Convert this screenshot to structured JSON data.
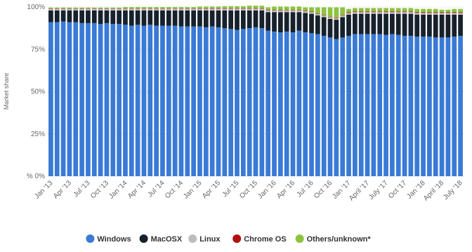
{
  "chart_data": {
    "type": "stacked_bar",
    "y_label": "Market share",
    "categories": [
      "Jan '13",
      null,
      null,
      "Apr '13",
      null,
      null,
      "Jul '13",
      null,
      null,
      "Oct '13",
      null,
      null,
      "Jan '14",
      null,
      null,
      "Apr '14",
      null,
      null,
      "Jul '14",
      null,
      null,
      "Oct '14",
      null,
      null,
      "Jan '15",
      null,
      null,
      "Apr '15",
      null,
      null,
      "Jul '15",
      null,
      null,
      "Oct '15",
      null,
      null,
      "Jan '16",
      null,
      null,
      "Apr '16",
      null,
      null,
      "Jul '16",
      null,
      null,
      "Oct '16",
      null,
      null,
      "Jan '17",
      null,
      null,
      "April '17",
      null,
      null,
      "July '17",
      null,
      null,
      "Oct '17",
      null,
      null,
      "Jan '18",
      null,
      null,
      "April '18",
      null,
      null,
      "July '18"
    ],
    "series": [
      {
        "name": "Windows",
        "color": "#3a7ad6",
        "values": [
          91,
          91,
          91.5,
          91,
          91,
          90.5,
          90.5,
          90.5,
          90,
          90.5,
          90,
          90,
          89.5,
          89,
          89.5,
          89,
          89.5,
          89,
          89,
          89,
          89,
          88.5,
          88.5,
          88.5,
          88.5,
          88,
          88.5,
          88,
          87.5,
          87,
          86.5,
          87,
          87.5,
          88,
          87.5,
          86,
          85.5,
          85,
          85.5,
          85,
          86,
          85,
          84.5,
          84,
          83,
          82,
          81,
          82,
          83,
          84,
          84,
          84,
          84,
          84,
          83.5,
          84,
          83.5,
          83,
          83,
          82.5,
          82.5,
          82.5,
          82,
          82,
          82,
          82.5,
          83
        ]
      },
      {
        "name": "MacOSX",
        "color": "#17212c",
        "values": [
          7,
          7,
          6.5,
          7,
          7,
          7.5,
          7.5,
          7.5,
          8,
          7.5,
          8,
          8,
          8.5,
          9,
          8.5,
          9,
          8.5,
          9,
          9,
          9,
          9,
          9.5,
          9.5,
          9.5,
          9.5,
          10,
          9.5,
          10,
          10.5,
          11,
          11.5,
          11,
          10.5,
          10,
          10.5,
          11,
          11.5,
          12,
          11.5,
          12,
          11,
          11.5,
          11.5,
          11,
          11,
          11,
          11.5,
          12,
          12.5,
          12,
          12,
          12,
          12,
          12,
          12.5,
          12,
          12.5,
          13,
          13,
          13,
          13,
          13,
          13.5,
          13.5,
          13.5,
          13,
          12.5
        ]
      },
      {
        "name": "Linux",
        "color": "#bdbdbd",
        "values": [
          1,
          1,
          1,
          1,
          1,
          1,
          1,
          1,
          1,
          1,
          1,
          1,
          1,
          1,
          1,
          1,
          1,
          1,
          1,
          1,
          1,
          1,
          1,
          1,
          1,
          1,
          1,
          1,
          1,
          1,
          1,
          1,
          1,
          1,
          1,
          1,
          1,
          1,
          1,
          1,
          1,
          1,
          1,
          1,
          1,
          1,
          1,
          1,
          1,
          1,
          1,
          1,
          1,
          1,
          1,
          1,
          1,
          1,
          1,
          1,
          1,
          1,
          1,
          1,
          1,
          1,
          1
        ]
      },
      {
        "name": "Chrome OS",
        "color": "#b20f0f",
        "values": [
          0.2,
          0.2,
          0.2,
          0.2,
          0.2,
          0.2,
          0.2,
          0.2,
          0.2,
          0.2,
          0.2,
          0.2,
          0.2,
          0.2,
          0.2,
          0.2,
          0.2,
          0.2,
          0.2,
          0.2,
          0.2,
          0.2,
          0.2,
          0.2,
          0.3,
          0.3,
          0.3,
          0.3,
          0.3,
          0.3,
          0.3,
          0.3,
          0.3,
          0.3,
          0.3,
          0.3,
          0.3,
          0.3,
          0.3,
          0.3,
          0.3,
          0.3,
          0.3,
          0.3,
          0.3,
          0.3,
          0.3,
          0.3,
          0.4,
          0.4,
          0.4,
          0.4,
          0.4,
          0.4,
          0.4,
          0.4,
          0.4,
          0.4,
          0.4,
          0.4,
          0.4,
          0.4,
          0.4,
          0.4,
          0.4,
          0.4,
          0.4
        ]
      },
      {
        "name": "Others/unknown*",
        "color": "#8cc43f",
        "values": [
          0.5,
          0.5,
          0.5,
          0.5,
          0.5,
          0.5,
          0.5,
          0.5,
          0.5,
          0.5,
          0.5,
          0.5,
          0.8,
          0.8,
          0.8,
          0.8,
          0.8,
          0.8,
          0.8,
          0.8,
          0.8,
          0.8,
          0.8,
          0.8,
          1,
          1,
          1,
          1,
          1.2,
          1.2,
          1.2,
          1.2,
          1.5,
          1.5,
          1.5,
          1.5,
          2,
          2,
          2,
          2,
          2,
          2,
          2.5,
          3.5,
          4.5,
          5.5,
          6,
          4.5,
          2,
          2,
          2,
          2,
          2,
          2,
          2,
          2,
          2,
          2,
          2,
          2,
          2,
          2,
          2,
          1.5,
          1.5,
          2,
          2
        ]
      }
    ],
    "ylim": [
      0,
      100
    ],
    "yticks": [
      {
        "value": 0,
        "label": "% 0%"
      },
      {
        "value": 25,
        "label": "25%"
      },
      {
        "value": 50,
        "label": "50%"
      },
      {
        "value": 75,
        "label": "75%"
      },
      {
        "value": 100,
        "label": "100%"
      }
    ],
    "grid": true
  }
}
